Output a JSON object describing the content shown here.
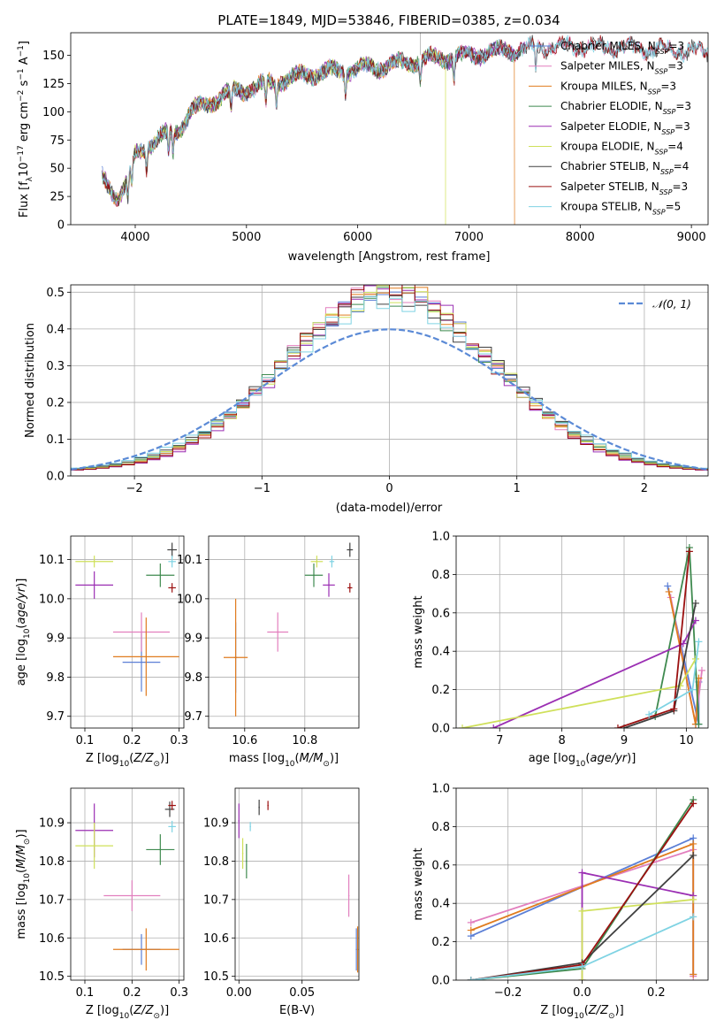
{
  "figure": {
    "title": "PLATE=1849, MJD=53846, FIBERID=0385, z=0.034"
  },
  "colors": {
    "Chabrier MILES": "#5b7fd6",
    "Salpeter MILES": "#e27fbe",
    "Kroupa MILES": "#e07c1f",
    "Chabrier ELODIE": "#3f8a4f",
    "Salpeter ELODIE": "#9b2fb3",
    "Kroupa ELODIE": "#cfe05a",
    "Chabrier STELIB": "#404040",
    "Salpeter STELIB": "#9b1010",
    "Kroupa STELIB": "#7fd3e3"
  },
  "chart_data": [
    {
      "id": "spectrum",
      "type": "line",
      "title": "PLATE=1849, MJD=53846, FIBERID=0385, z=0.034",
      "xlabel": "wavelength [Angstrom, rest frame]",
      "ylabel": "Flux [f_λ 10^-17 erg cm^-2 s^-1 A^-1]",
      "xlim": [
        3420,
        9150
      ],
      "ylim": [
        0,
        170
      ],
      "xticks": [
        4000,
        5000,
        6000,
        7000,
        8000,
        9000
      ],
      "yticks": [
        0,
        25,
        50,
        75,
        100,
        125,
        150
      ],
      "spectrum_anchors": {
        "x": [
          3700,
          3750,
          3800,
          3850,
          3900,
          3950,
          4000,
          4100,
          4200,
          4300,
          4400,
          4500,
          4600,
          4800,
          5000,
          5200,
          5400,
          5600,
          5800,
          6000,
          6200,
          6400,
          6600,
          6800,
          7000,
          7200,
          7400,
          7600,
          7800,
          8000,
          8200,
          8400,
          8600,
          8800,
          9000,
          9150
        ],
        "y": [
          42,
          36,
          30,
          25,
          32,
          42,
          62,
          70,
          75,
          80,
          86,
          100,
          105,
          115,
          120,
          125,
          130,
          134,
          136,
          138,
          140,
          143,
          146,
          148,
          150,
          153,
          155,
          157,
          158,
          158,
          157,
          157,
          156,
          155,
          154,
          153
        ]
      },
      "absorption_features": [
        3934,
        3969,
        4102,
        4300,
        4340,
        4861,
        5175,
        5270,
        5890,
        6563,
        6867,
        7600
      ],
      "cutoffs": [
        {
          "series": "Kroupa ELODIE",
          "wavelength": 6790
        },
        {
          "series": "Kroupa MILES",
          "wavelength": 7410
        }
      ],
      "series": [
        {
          "name": "Chabrier MILES",
          "label": "Chabrier MILES, N",
          "nssp": "=3"
        },
        {
          "name": "Salpeter MILES",
          "label": "Salpeter MILES, N",
          "nssp": "=3"
        },
        {
          "name": "Kroupa MILES",
          "label": "Kroupa MILES, N",
          "nssp": "=3"
        },
        {
          "name": "Chabrier ELODIE",
          "label": "Chabrier ELODIE, N",
          "nssp": "=3"
        },
        {
          "name": "Salpeter ELODIE",
          "label": "Salpeter ELODIE, N",
          "nssp": "=3"
        },
        {
          "name": "Kroupa ELODIE",
          "label": "Kroupa ELODIE, N",
          "nssp": "=4"
        },
        {
          "name": "Chabrier STELIB",
          "label": "Chabrier STELIB, N",
          "nssp": "=4"
        },
        {
          "name": "Salpeter STELIB",
          "label": "Salpeter STELIB, N",
          "nssp": "=3"
        },
        {
          "name": "Kroupa STELIB",
          "label": "Kroupa STELIB, N",
          "nssp": "=5"
        }
      ],
      "legend_subscript": "SSP",
      "legend": "top-right"
    },
    {
      "id": "residuals",
      "type": "line",
      "xlabel": "(data-model)/error",
      "ylabel": "Normed distribution",
      "xlim": [
        -2.5,
        2.5
      ],
      "ylim": [
        0,
        0.52
      ],
      "xticks": [
        -2,
        -1,
        0,
        1,
        2
      ],
      "yticks": [
        0.0,
        0.1,
        0.2,
        0.3,
        0.4,
        0.5
      ],
      "grid": true,
      "legend": "top-right",
      "normal_label": "𝒩(0, 1)",
      "normal_color": "#5b8ad6",
      "bin_width": 0.1,
      "series_sigma": {
        "Chabrier MILES": 0.82,
        "Salpeter MILES": 0.8,
        "Kroupa MILES": 0.81,
        "Chabrier ELODIE": 0.84,
        "Salpeter ELODIE": 0.79,
        "Kroupa ELODIE": 0.83,
        "Chabrier STELIB": 0.86,
        "Salpeter STELIB": 0.8,
        "Kroupa STELIB": 0.88
      }
    },
    {
      "id": "age_vs_Z",
      "type": "scatter",
      "xlabel": "Z [log10(Z/Z⊙)]",
      "ylabel": "age  [log10(age/yr)]",
      "xlim": [
        0.07,
        0.31
      ],
      "ylim": [
        9.67,
        10.16
      ],
      "xticks": [
        0.1,
        0.2,
        0.3
      ],
      "yticks": [
        9.7,
        9.8,
        9.9,
        10.0,
        10.1
      ],
      "grid": true,
      "points": [
        {
          "series": "Chabrier MILES",
          "x": 0.22,
          "y": 9.838,
          "xerr": 0.04,
          "yerr": 0.075
        },
        {
          "series": "Salpeter MILES",
          "x": 0.22,
          "y": 9.915,
          "xerr": 0.06,
          "yerr": 0.05
        },
        {
          "series": "Kroupa MILES",
          "x": 0.23,
          "y": 9.852,
          "xerr": 0.07,
          "yerr": 0.1
        },
        {
          "series": "Chabrier ELODIE",
          "x": 0.26,
          "y": 10.06,
          "xerr": 0.03,
          "yerr": 0.03
        },
        {
          "series": "Salpeter ELODIE",
          "x": 0.12,
          "y": 10.035,
          "xerr": 0.04,
          "yerr": 0.035
        },
        {
          "series": "Kroupa ELODIE",
          "x": 0.12,
          "y": 10.095,
          "xerr": 0.04,
          "yerr": 0.015
        },
        {
          "series": "Chabrier STELIB",
          "x": 0.285,
          "y": 10.125,
          "xerr": 0.01,
          "yerr": 0.018
        },
        {
          "series": "Salpeter STELIB",
          "x": 0.285,
          "y": 10.028,
          "xerr": 0.008,
          "yerr": 0.012
        },
        {
          "series": "Kroupa STELIB",
          "x": 0.285,
          "y": 10.095,
          "xerr": 0.008,
          "yerr": 0.015
        }
      ]
    },
    {
      "id": "age_vs_mass",
      "type": "scatter",
      "xlabel": "mass [log10(M/M⊙)]",
      "ylabel": "",
      "xlim": [
        10.48,
        10.98
      ],
      "ylim": [
        9.67,
        10.16
      ],
      "xticks": [
        10.6,
        10.8
      ],
      "yticks": [
        9.7,
        9.8,
        9.9,
        10.0,
        10.1
      ],
      "grid": true,
      "points": [
        {
          "series": "Chabrier MILES",
          "x": 10.57,
          "y": 9.85,
          "xerr": 0.005,
          "yerr": 0.09
        },
        {
          "series": "Salpeter MILES",
          "x": 10.71,
          "y": 9.915,
          "xerr": 0.035,
          "yerr": 0.05
        },
        {
          "series": "Kroupa MILES",
          "x": 10.57,
          "y": 9.85,
          "xerr": 0.04,
          "yerr": 0.15
        },
        {
          "series": "Chabrier ELODIE",
          "x": 10.83,
          "y": 10.06,
          "xerr": 0.03,
          "yerr": 0.03
        },
        {
          "series": "Salpeter ELODIE",
          "x": 10.88,
          "y": 10.035,
          "xerr": 0.02,
          "yerr": 0.03
        },
        {
          "series": "Kroupa ELODIE",
          "x": 10.84,
          "y": 10.095,
          "xerr": 0.02,
          "yerr": 0.015
        },
        {
          "series": "Chabrier STELIB",
          "x": 10.95,
          "y": 10.125,
          "xerr": 0.01,
          "yerr": 0.018
        },
        {
          "series": "Salpeter STELIB",
          "x": 10.95,
          "y": 10.028,
          "xerr": 0.008,
          "yerr": 0.012
        },
        {
          "series": "Kroupa STELIB",
          "x": 10.89,
          "y": 10.095,
          "xerr": 0.008,
          "yerr": 0.015
        }
      ]
    },
    {
      "id": "massweight_vs_age",
      "type": "line",
      "xlabel": "age  [log10(age/yr)]",
      "ylabel": "mass weight",
      "xlim": [
        6.3,
        10.35
      ],
      "ylim": [
        0,
        1.0
      ],
      "xticks": [
        7,
        8,
        9,
        10
      ],
      "yticks": [
        0.0,
        0.2,
        0.4,
        0.6,
        0.8,
        1.0
      ],
      "grid": true,
      "series": [
        {
          "name": "Chabrier MILES",
          "x": [
            9.7,
            10.2,
            10.2
          ],
          "y": [
            0.74,
            0.02,
            0.24
          ]
        },
        {
          "name": "Salpeter MILES",
          "x": [
            9.75,
            10.15,
            10.25
          ],
          "y": [
            0.68,
            0.02,
            0.3
          ]
        },
        {
          "name": "Kroupa MILES",
          "x": [
            9.72,
            10.15,
            10.2
          ],
          "y": [
            0.71,
            0.02,
            0.26
          ]
        },
        {
          "name": "Chabrier ELODIE",
          "x": [
            9.5,
            10.05,
            10.2
          ],
          "y": [
            0.06,
            0.94,
            0.02
          ]
        },
        {
          "name": "Salpeter ELODIE",
          "x": [
            6.9,
            9.95,
            10.15
          ],
          "y": [
            0.0,
            0.44,
            0.56
          ]
        },
        {
          "name": "Kroupa ELODIE",
          "x": [
            6.4,
            9.9,
            10.15
          ],
          "y": [
            0.0,
            0.22,
            0.36
          ]
        },
        {
          "name": "Chabrier STELIB",
          "x": [
            9.0,
            9.8,
            10.15
          ],
          "y": [
            0.0,
            0.09,
            0.65
          ]
        },
        {
          "name": "Salpeter STELIB",
          "x": [
            8.9,
            9.8,
            10.05
          ],
          "y": [
            0.0,
            0.1,
            0.92
          ]
        },
        {
          "name": "Kroupa STELIB",
          "x": [
            9.4,
            10.1,
            10.2
          ],
          "y": [
            0.07,
            0.2,
            0.45
          ]
        }
      ]
    },
    {
      "id": "mass_vs_Z",
      "type": "scatter",
      "xlabel": "Z [log10(Z/Z⊙)]",
      "ylabel": "mass [log10(M/M⊙)]",
      "xlim": [
        0.07,
        0.31
      ],
      "ylim": [
        10.49,
        10.99
      ],
      "xticks": [
        0.1,
        0.2,
        0.3
      ],
      "yticks": [
        10.5,
        10.6,
        10.7,
        10.8,
        10.9
      ],
      "grid": true,
      "points": [
        {
          "series": "Chabrier MILES",
          "x": 0.22,
          "y": 10.57,
          "xerr": 0.04,
          "yerr": 0.04
        },
        {
          "series": "Salpeter MILES",
          "x": 0.2,
          "y": 10.71,
          "xerr": 0.06,
          "yerr": 0.04
        },
        {
          "series": "Kroupa MILES",
          "x": 0.23,
          "y": 10.57,
          "xerr": 0.07,
          "yerr": 0.055
        },
        {
          "series": "Chabrier ELODIE",
          "x": 0.26,
          "y": 10.83,
          "xerr": 0.03,
          "yerr": 0.04
        },
        {
          "series": "Salpeter ELODIE",
          "x": 0.12,
          "y": 10.88,
          "xerr": 0.04,
          "yerr": 0.07
        },
        {
          "series": "Kroupa ELODIE",
          "x": 0.12,
          "y": 10.84,
          "xerr": 0.04,
          "yerr": 0.06
        },
        {
          "series": "Chabrier STELIB",
          "x": 0.28,
          "y": 10.935,
          "xerr": 0.01,
          "yerr": 0.02
        },
        {
          "series": "Salpeter STELIB",
          "x": 0.285,
          "y": 10.945,
          "xerr": 0.008,
          "yerr": 0.012
        },
        {
          "series": "Kroupa STELIB",
          "x": 0.285,
          "y": 10.89,
          "xerr": 0.008,
          "yerr": 0.015
        }
      ]
    },
    {
      "id": "mass_vs_EBV",
      "type": "scatter",
      "xlabel": "E(B-V)",
      "ylabel": "",
      "xlim": [
        -0.003,
        0.095
      ],
      "ylim": [
        10.49,
        10.99
      ],
      "xticks": [
        0.0,
        0.05
      ],
      "yticks": [
        10.5,
        10.6,
        10.7,
        10.8,
        10.9
      ],
      "grid": true,
      "points": [
        {
          "series": "Chabrier MILES",
          "x": 0.093,
          "y": 10.57,
          "xerr": 0,
          "yerr": 0.055
        },
        {
          "series": "Salpeter MILES",
          "x": 0.087,
          "y": 10.71,
          "xerr": 0,
          "yerr": 0.055
        },
        {
          "series": "Kroupa MILES",
          "x": 0.094,
          "y": 10.57,
          "xerr": 0,
          "yerr": 0.06
        },
        {
          "series": "Chabrier ELODIE",
          "x": 0.006,
          "y": 10.8,
          "xerr": 0,
          "yerr": 0.045
        },
        {
          "series": "Salpeter ELODIE",
          "x": 0.0,
          "y": 10.905,
          "xerr": 0,
          "yerr": 0.045
        },
        {
          "series": "Kroupa ELODIE",
          "x": 0.003,
          "y": 10.82,
          "xerr": 0,
          "yerr": 0.04
        },
        {
          "series": "Chabrier STELIB",
          "x": 0.016,
          "y": 10.94,
          "xerr": 0,
          "yerr": 0.02
        },
        {
          "series": "Salpeter STELIB",
          "x": 0.023,
          "y": 10.945,
          "xerr": 0,
          "yerr": 0.012
        },
        {
          "series": "Kroupa STELIB",
          "x": 0.009,
          "y": 10.89,
          "xerr": 0,
          "yerr": 0.012
        }
      ]
    },
    {
      "id": "massweight_vs_Z",
      "type": "line",
      "xlabel": "Z [log10(Z/Z⊙)]",
      "ylabel": "mass weight",
      "xlim": [
        -0.34,
        0.34
      ],
      "ylim": [
        0,
        1.0
      ],
      "xticks": [
        -0.2,
        0.0,
        0.2
      ],
      "yticks": [
        0.0,
        0.2,
        0.4,
        0.6,
        0.8,
        1.0
      ],
      "grid": true,
      "series": [
        {
          "name": "Chabrier MILES",
          "x": [
            -0.3,
            0.3,
            0.3
          ],
          "y": [
            0.23,
            0.74,
            0.03
          ]
        },
        {
          "name": "Salpeter MILES",
          "x": [
            -0.3,
            0.3,
            0.3
          ],
          "y": [
            0.3,
            0.68,
            0.02
          ]
        },
        {
          "name": "Kroupa MILES",
          "x": [
            -0.3,
            0.3,
            0.3
          ],
          "y": [
            0.26,
            0.71,
            0.03
          ]
        },
        {
          "name": "Chabrier ELODIE",
          "x": [
            -0.3,
            0.0,
            0.3
          ],
          "y": [
            0.0,
            0.06,
            0.94
          ]
        },
        {
          "name": "Salpeter ELODIE",
          "x": [
            0.0,
            0.0,
            0.3
          ],
          "y": [
            0.0,
            0.56,
            0.44
          ]
        },
        {
          "name": "Kroupa ELODIE",
          "x": [
            0.0,
            0.0,
            0.3
          ],
          "y": [
            0.0,
            0.36,
            0.42
          ]
        },
        {
          "name": "Chabrier STELIB",
          "x": [
            -0.3,
            0.0,
            0.3
          ],
          "y": [
            0.0,
            0.09,
            0.65
          ]
        },
        {
          "name": "Salpeter STELIB",
          "x": [
            -0.3,
            0.0,
            0.3
          ],
          "y": [
            0.0,
            0.08,
            0.92
          ]
        },
        {
          "name": "Kroupa STELIB",
          "x": [
            -0.3,
            0.0,
            0.3
          ],
          "y": [
            0.0,
            0.07,
            0.33
          ]
        }
      ]
    }
  ]
}
